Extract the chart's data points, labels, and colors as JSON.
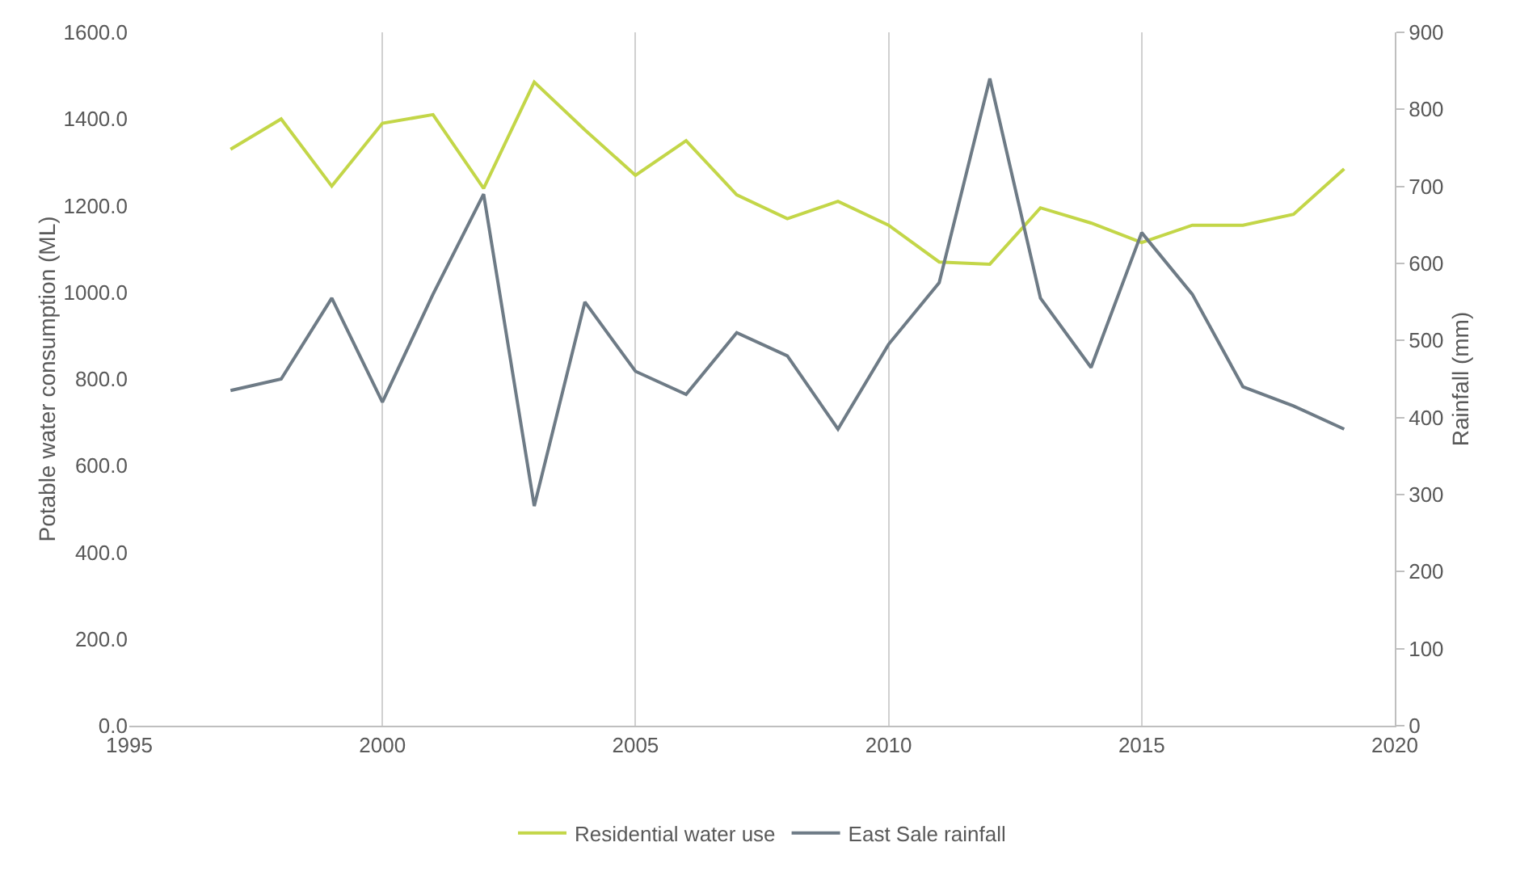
{
  "chart_data": {
    "type": "line",
    "ylabel": "Potable water consumption (ML)",
    "y2label": "Rainfall (mm)",
    "x": [
      1997,
      1998,
      1999,
      2000,
      2001,
      2002,
      2003,
      2004,
      2005,
      2006,
      2007,
      2008,
      2009,
      2010,
      2011,
      2012,
      2013,
      2014,
      2015,
      2016,
      2017,
      2018,
      2019
    ],
    "series": [
      {
        "name": "Residential water use",
        "color": "#c3d648",
        "values": [
          1330,
          1400,
          1245,
          1390,
          1410,
          1240,
          1485,
          1375,
          1270,
          1350,
          1225,
          1170,
          1210,
          1155,
          1070,
          1065,
          1195,
          1160,
          1115,
          1155,
          1155,
          1180,
          1285
        ]
      },
      {
        "name": "East Sale rainfall",
        "color": "#6e7b86",
        "axis": "y2",
        "values": [
          435,
          450,
          555,
          420,
          560,
          690,
          285,
          550,
          460,
          430,
          510,
          480,
          385,
          495,
          575,
          840,
          555,
          465,
          640,
          560,
          440,
          415,
          385
        ]
      }
    ],
    "xlim": [
      1995,
      2020
    ],
    "xticks": [
      1995,
      2000,
      2005,
      2010,
      2015,
      2020
    ],
    "ylim": [
      0,
      1600
    ],
    "yticks": [
      {
        "value": 0,
        "label": "0.0"
      },
      {
        "value": 200,
        "label": "200.0"
      },
      {
        "value": 400,
        "label": "400.0"
      },
      {
        "value": 600,
        "label": "600.0"
      },
      {
        "value": 800,
        "label": "800.0"
      },
      {
        "value": 1000,
        "label": "1000.0"
      },
      {
        "value": 1200,
        "label": "1200.0"
      },
      {
        "value": 1400,
        "label": "1400.0"
      },
      {
        "value": 1600,
        "label": "1600.0"
      }
    ],
    "y2lim": [
      0,
      900
    ],
    "y2ticks": [
      0,
      100,
      200,
      300,
      400,
      500,
      600,
      700,
      800,
      900
    ],
    "grid": "x",
    "legend": "bottom",
    "marker": "none",
    "line_style": "solid"
  }
}
